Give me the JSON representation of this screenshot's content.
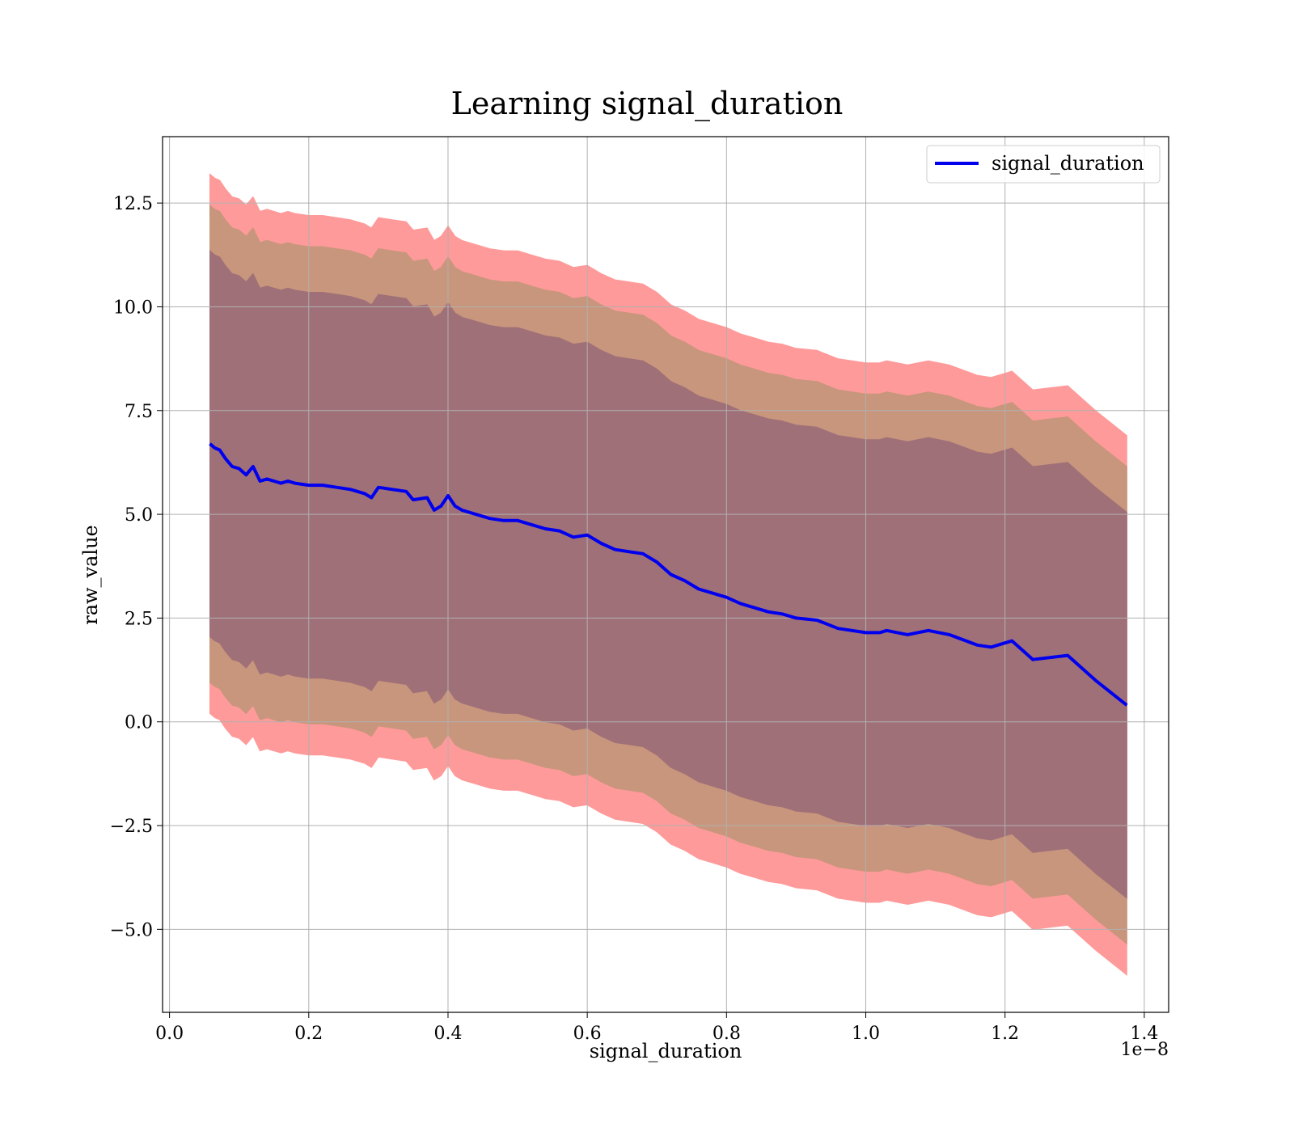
{
  "chart_data": {
    "type": "line",
    "title": "Learning signal_duration",
    "xlabel": "signal_duration",
    "ylabel": "raw_value",
    "x_offset_label": "1e−8",
    "xlim": [
      -0.01,
      1.435
    ],
    "ylim": [
      -7.0,
      14.1
    ],
    "xticks": [
      0.0,
      0.2,
      0.4,
      0.6,
      0.8,
      1.0,
      1.2,
      1.4
    ],
    "xtick_labels": [
      "0.0",
      "0.2",
      "0.4",
      "0.6",
      "0.8",
      "1.0",
      "1.2",
      "1.4"
    ],
    "yticks": [
      -5.0,
      -2.5,
      0.0,
      2.5,
      5.0,
      7.5,
      10.0,
      12.5
    ],
    "ytick_labels": [
      "−5.0",
      "−2.5",
      "0.0",
      "2.5",
      "5.0",
      "7.5",
      "10.0",
      "12.5"
    ],
    "grid": true,
    "legend": {
      "position": "upper right",
      "entries": [
        "signal_duration"
      ]
    },
    "colors": {
      "line": "#0000ee",
      "band_outer": "#ff9a9a",
      "band_middle": "#c8967c",
      "band_inner": "#a07078",
      "grid": "#b0b0b0"
    },
    "series": [
      {
        "name": "signal_duration",
        "x": [
          0.058,
          0.065,
          0.072,
          0.08,
          0.09,
          0.1,
          0.11,
          0.12,
          0.13,
          0.14,
          0.15,
          0.16,
          0.17,
          0.18,
          0.2,
          0.22,
          0.24,
          0.26,
          0.28,
          0.29,
          0.3,
          0.32,
          0.34,
          0.35,
          0.37,
          0.38,
          0.39,
          0.4,
          0.41,
          0.42,
          0.44,
          0.46,
          0.48,
          0.5,
          0.52,
          0.54,
          0.56,
          0.58,
          0.6,
          0.62,
          0.64,
          0.66,
          0.68,
          0.7,
          0.72,
          0.74,
          0.76,
          0.78,
          0.8,
          0.82,
          0.84,
          0.86,
          0.88,
          0.9,
          0.93,
          0.96,
          1.0,
          1.02,
          1.03,
          1.06,
          1.09,
          1.12,
          1.16,
          1.18,
          1.21,
          1.24,
          1.29,
          1.33,
          1.375
        ],
        "y": [
          6.7,
          6.6,
          6.55,
          6.35,
          6.15,
          6.1,
          5.95,
          6.15,
          5.8,
          5.85,
          5.8,
          5.75,
          5.8,
          5.75,
          5.7,
          5.7,
          5.65,
          5.6,
          5.5,
          5.4,
          5.65,
          5.6,
          5.55,
          5.35,
          5.4,
          5.1,
          5.2,
          5.45,
          5.2,
          5.1,
          5.0,
          4.9,
          4.85,
          4.85,
          4.75,
          4.65,
          4.6,
          4.45,
          4.5,
          4.3,
          4.15,
          4.1,
          4.05,
          3.85,
          3.55,
          3.4,
          3.2,
          3.1,
          3.0,
          2.85,
          2.75,
          2.65,
          2.6,
          2.5,
          2.45,
          2.25,
          2.15,
          2.15,
          2.2,
          2.1,
          2.2,
          2.1,
          1.85,
          1.8,
          1.95,
          1.5,
          1.6,
          1.0,
          0.4
        ]
      }
    ],
    "bands": [
      {
        "level": "outer",
        "offset": 6.5
      },
      {
        "level": "middle",
        "offset": 5.75
      },
      {
        "level": "inner",
        "offset": 4.65
      }
    ]
  }
}
